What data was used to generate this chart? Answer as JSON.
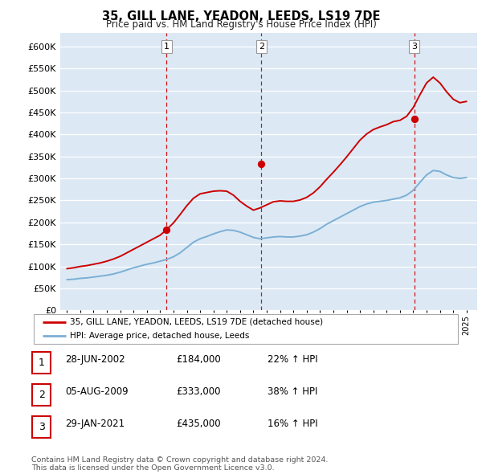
{
  "title": "35, GILL LANE, YEADON, LEEDS, LS19 7DE",
  "subtitle": "Price paid vs. HM Land Registry's House Price Index (HPI)",
  "yticks": [
    0,
    50000,
    100000,
    150000,
    200000,
    250000,
    300000,
    350000,
    400000,
    450000,
    500000,
    550000,
    600000
  ],
  "ylim": [
    0,
    630000
  ],
  "xlim_start": 1994.5,
  "xlim_end": 2025.8,
  "sale_color": "#cc0000",
  "hpi_color": "#7bafd4",
  "plot_bg_color": "#dce9f5",
  "sale_dates": [
    2002.49,
    2009.59,
    2021.08
  ],
  "sale_values": [
    184000,
    333000,
    435000
  ],
  "sale_labels": [
    "1",
    "2",
    "3"
  ],
  "vline_color": "#cc0000",
  "legend_label_sale": "35, GILL LANE, YEADON, LEEDS, LS19 7DE (detached house)",
  "legend_label_hpi": "HPI: Average price, detached house, Leeds",
  "table_rows": [
    {
      "num": "1",
      "date": "28-JUN-2002",
      "price": "£184,000",
      "change": "22% ↑ HPI"
    },
    {
      "num": "2",
      "date": "05-AUG-2009",
      "price": "£333,000",
      "change": "38% ↑ HPI"
    },
    {
      "num": "3",
      "date": "29-JAN-2021",
      "price": "£435,000",
      "change": "16% ↑ HPI"
    }
  ],
  "footer": "Contains HM Land Registry data © Crown copyright and database right 2024.\nThis data is licensed under the Open Government Licence v3.0.",
  "hpi_x": [
    1995.0,
    1995.5,
    1996.0,
    1996.5,
    1997.0,
    1997.5,
    1998.0,
    1998.5,
    1999.0,
    1999.5,
    2000.0,
    2000.5,
    2001.0,
    2001.5,
    2002.0,
    2002.5,
    2003.0,
    2003.5,
    2004.0,
    2004.5,
    2005.0,
    2005.5,
    2006.0,
    2006.5,
    2007.0,
    2007.5,
    2008.0,
    2008.5,
    2009.0,
    2009.5,
    2010.0,
    2010.5,
    2011.0,
    2011.5,
    2012.0,
    2012.5,
    2013.0,
    2013.5,
    2014.0,
    2014.5,
    2015.0,
    2015.5,
    2016.0,
    2016.5,
    2017.0,
    2017.5,
    2018.0,
    2018.5,
    2019.0,
    2019.5,
    2020.0,
    2020.5,
    2021.0,
    2021.5,
    2022.0,
    2022.5,
    2023.0,
    2023.5,
    2024.0,
    2024.5,
    2025.0
  ],
  "hpi_y": [
    70000,
    71000,
    73000,
    74000,
    76000,
    78000,
    80000,
    83000,
    87000,
    92000,
    97000,
    101000,
    105000,
    108000,
    112000,
    116000,
    122000,
    131000,
    143000,
    155000,
    163000,
    168000,
    174000,
    179000,
    183000,
    182000,
    178000,
    172000,
    166000,
    163000,
    165000,
    167000,
    168000,
    167000,
    167000,
    169000,
    172000,
    178000,
    186000,
    196000,
    204000,
    212000,
    220000,
    228000,
    236000,
    242000,
    246000,
    248000,
    250000,
    253000,
    256000,
    262000,
    273000,
    291000,
    308000,
    318000,
    316000,
    308000,
    302000,
    300000,
    302000
  ],
  "sale_hpi_x": [
    1995.0,
    1995.5,
    1996.0,
    1996.5,
    1997.0,
    1997.5,
    1998.0,
    1998.5,
    1999.0,
    1999.5,
    2000.0,
    2000.5,
    2001.0,
    2001.5,
    2002.0,
    2002.5,
    2003.0,
    2003.5,
    2004.0,
    2004.5,
    2005.0,
    2005.5,
    2006.0,
    2006.5,
    2007.0,
    2007.5,
    2008.0,
    2008.5,
    2009.0,
    2009.5,
    2010.0,
    2010.5,
    2011.0,
    2011.5,
    2012.0,
    2012.5,
    2013.0,
    2013.5,
    2014.0,
    2014.5,
    2015.0,
    2015.5,
    2016.0,
    2016.5,
    2017.0,
    2017.5,
    2018.0,
    2018.5,
    2019.0,
    2019.5,
    2020.0,
    2020.5,
    2021.0,
    2021.5,
    2022.0,
    2022.5,
    2023.0,
    2023.5,
    2024.0,
    2024.5,
    2025.0
  ],
  "sale_hpi_y": [
    95000,
    97000,
    100000,
    102000,
    105000,
    108000,
    112000,
    117000,
    123000,
    131000,
    139000,
    147000,
    155000,
    163000,
    171000,
    184000,
    199000,
    218000,
    238000,
    255000,
    265000,
    268000,
    271000,
    272000,
    271000,
    262000,
    248000,
    237000,
    228000,
    233000,
    240000,
    247000,
    249000,
    248000,
    248000,
    251000,
    257000,
    267000,
    281000,
    298000,
    314000,
    331000,
    349000,
    368000,
    387000,
    401000,
    411000,
    417000,
    422000,
    429000,
    432000,
    441000,
    461000,
    490000,
    517000,
    530000,
    517000,
    497000,
    480000,
    472000,
    475000
  ]
}
